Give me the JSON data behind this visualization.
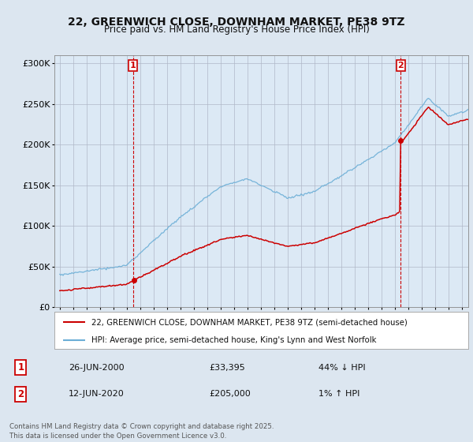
{
  "title_line1": "22, GREENWICH CLOSE, DOWNHAM MARKET, PE38 9TZ",
  "title_line2": "Price paid vs. HM Land Registry's House Price Index (HPI)",
  "background_color": "#dce6f0",
  "plot_bg_color": "#dce9f5",
  "hpi_color": "#6baed6",
  "price_color": "#cc0000",
  "vline_color": "#cc0000",
  "marker_color": "#cc0000",
  "legend_label_price": "22, GREENWICH CLOSE, DOWNHAM MARKET, PE38 9TZ (semi-detached house)",
  "legend_label_hpi": "HPI: Average price, semi-detached house, King's Lynn and West Norfolk",
  "annotation1_label": "1",
  "annotation1_date": "26-JUN-2000",
  "annotation1_price": "£33,395",
  "annotation1_hpi": "44% ↓ HPI",
  "annotation1_year": 2000.48,
  "annotation1_value": 33395,
  "annotation2_label": "2",
  "annotation2_date": "12-JUN-2020",
  "annotation2_price": "£205,000",
  "annotation2_hpi": "1% ↑ HPI",
  "annotation2_year": 2020.45,
  "annotation2_value": 205000,
  "ylim_max": 310000,
  "ylim_min": 0,
  "xlim_min": 1994.6,
  "xlim_max": 2025.5,
  "footer": "Contains HM Land Registry data © Crown copyright and database right 2025.\nThis data is licensed under the Open Government Licence v3.0.",
  "yticks": [
    0,
    50000,
    100000,
    150000,
    200000,
    250000,
    300000
  ],
  "ytick_labels": [
    "£0",
    "£50K",
    "£100K",
    "£150K",
    "£200K",
    "£250K",
    "£300K"
  ],
  "xticks": [
    1995,
    1996,
    1997,
    1998,
    1999,
    2000,
    2001,
    2002,
    2003,
    2004,
    2005,
    2006,
    2007,
    2008,
    2009,
    2010,
    2011,
    2012,
    2013,
    2014,
    2015,
    2016,
    2017,
    2018,
    2019,
    2020,
    2021,
    2022,
    2023,
    2024,
    2025
  ]
}
